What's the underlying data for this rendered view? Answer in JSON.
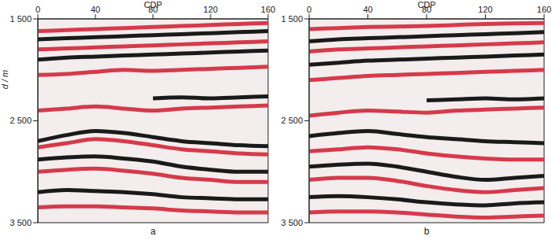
{
  "chart_data": [
    {
      "type": "line",
      "title": "a",
      "x_label": "CDP",
      "y_label": "d / m",
      "xlim": [
        0,
        160
      ],
      "xticks": [
        0,
        40,
        80,
        120,
        160
      ],
      "ylim": [
        3500,
        1500
      ],
      "yticks": [
        {
          "value": 1500,
          "label": "1 500"
        },
        {
          "value": 2500,
          "label": "2 500"
        },
        {
          "value": 3500,
          "label": "3 500"
        }
      ],
      "x": [
        0,
        20,
        40,
        60,
        80,
        100,
        120,
        140,
        160
      ],
      "series": [
        {
          "color": "#d63a4a",
          "values": [
            1620,
            1610,
            1600,
            1590,
            1580,
            1570,
            1560,
            1550,
            1540
          ]
        },
        {
          "color": "#1a1a1a",
          "values": [
            1700,
            1690,
            1680,
            1670,
            1660,
            1650,
            1640,
            1630,
            1620
          ]
        },
        {
          "color": "#d63a4a",
          "values": [
            1800,
            1790,
            1780,
            1770,
            1760,
            1750,
            1740,
            1730,
            1720
          ]
        },
        {
          "color": "#1a1a1a",
          "values": [
            1900,
            1880,
            1870,
            1860,
            1850,
            1840,
            1830,
            1820,
            1810
          ]
        },
        {
          "color": "#d63a4a",
          "values": [
            2050,
            2040,
            2020,
            2000,
            2010,
            2000,
            1990,
            1980,
            1970
          ]
        },
        {
          "color": "#1a1a1a",
          "values": [
            null,
            null,
            null,
            null,
            2280,
            2270,
            2280,
            2270,
            2260
          ]
        },
        {
          "color": "#d63a4a",
          "values": [
            2400,
            2380,
            2360,
            2380,
            2400,
            2380,
            2370,
            2360,
            2350
          ]
        },
        {
          "color": "#1a1a1a",
          "values": [
            2700,
            2640,
            2600,
            2620,
            2660,
            2700,
            2720,
            2740,
            2750
          ]
        },
        {
          "color": "#d63a4a",
          "values": [
            2760,
            2720,
            2680,
            2700,
            2740,
            2780,
            2800,
            2820,
            2830
          ]
        },
        {
          "color": "#1a1a1a",
          "values": [
            2880,
            2860,
            2850,
            2870,
            2900,
            2950,
            2980,
            3000,
            3000
          ]
        },
        {
          "color": "#d63a4a",
          "values": [
            3000,
            2980,
            2970,
            2990,
            3020,
            3060,
            3080,
            3100,
            3100
          ]
        },
        {
          "color": "#1a1a1a",
          "values": [
            3200,
            3180,
            3190,
            3200,
            3220,
            3250,
            3260,
            3270,
            3270
          ]
        },
        {
          "color": "#d63a4a",
          "values": [
            3350,
            3340,
            3340,
            3350,
            3360,
            3380,
            3390,
            3400,
            3400
          ]
        }
      ]
    },
    {
      "type": "line",
      "title": "b",
      "x_label": "CDP",
      "xlim": [
        0,
        160
      ],
      "xticks": [
        0,
        40,
        80,
        120,
        160
      ],
      "ylim": [
        3500,
        1500
      ],
      "yticks": [
        {
          "value": 1500,
          "label": "1 500"
        },
        {
          "value": 2500,
          "label": "2 500"
        },
        {
          "value": 3500,
          "label": "3 500"
        }
      ],
      "x": [
        0,
        20,
        40,
        60,
        80,
        100,
        120,
        140,
        160
      ],
      "series": [
        {
          "color": "#d63a4a",
          "values": [
            1600,
            1590,
            1580,
            1575,
            1570,
            1560,
            1550,
            1545,
            1540
          ]
        },
        {
          "color": "#1a1a1a",
          "values": [
            1720,
            1700,
            1690,
            1680,
            1670,
            1660,
            1650,
            1640,
            1630
          ]
        },
        {
          "color": "#d63a4a",
          "values": [
            1820,
            1800,
            1790,
            1780,
            1770,
            1760,
            1750,
            1740,
            1730
          ]
        },
        {
          "color": "#1a1a1a",
          "values": [
            1950,
            1930,
            1910,
            1900,
            1890,
            1880,
            1870,
            1860,
            1850
          ]
        },
        {
          "color": "#d63a4a",
          "values": [
            2100,
            2080,
            2060,
            2050,
            2040,
            2030,
            2020,
            2010,
            2000
          ]
        },
        {
          "color": "#1a1a1a",
          "values": [
            null,
            null,
            null,
            null,
            2300,
            2290,
            2280,
            2290,
            2280
          ]
        },
        {
          "color": "#d63a4a",
          "values": [
            2450,
            2420,
            2400,
            2410,
            2420,
            2400,
            2390,
            2380,
            2370
          ]
        },
        {
          "color": "#1a1a1a",
          "values": [
            2650,
            2620,
            2600,
            2630,
            2660,
            2680,
            2700,
            2710,
            2720
          ]
        },
        {
          "color": "#d63a4a",
          "values": [
            2800,
            2780,
            2760,
            2780,
            2820,
            2850,
            2870,
            2880,
            2880
          ]
        },
        {
          "color": "#1a1a1a",
          "values": [
            2950,
            2930,
            2920,
            2950,
            3000,
            3050,
            3080,
            3060,
            3040
          ]
        },
        {
          "color": "#d63a4a",
          "values": [
            3080,
            3060,
            3060,
            3090,
            3140,
            3180,
            3200,
            3180,
            3160
          ]
        },
        {
          "color": "#1a1a1a",
          "values": [
            3250,
            3240,
            3250,
            3270,
            3300,
            3320,
            3330,
            3310,
            3300
          ]
        },
        {
          "color": "#d63a4a",
          "values": [
            3400,
            3390,
            3390,
            3400,
            3420,
            3440,
            3450,
            3440,
            3430
          ]
        }
      ]
    }
  ]
}
